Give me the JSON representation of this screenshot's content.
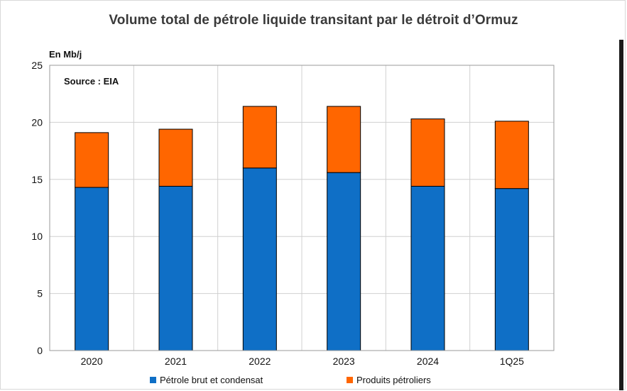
{
  "chart_data": {
    "type": "bar",
    "stacked": true,
    "title": "Volume total de pétrole liquide transitant par le détroit d’Ormuz",
    "ylabel": "En Mb/j",
    "annotation": "Source : EIA",
    "categories": [
      "2020",
      "2021",
      "2022",
      "2023",
      "2024",
      "1Q25"
    ],
    "series": [
      {
        "name": "Pétrole brut et condensat",
        "color": "#0f6fc6",
        "values": [
          14.3,
          14.4,
          16.0,
          15.6,
          14.4,
          14.2
        ]
      },
      {
        "name": "Produits pétroliers",
        "color": "#ff6600",
        "values": [
          4.8,
          5.0,
          5.4,
          5.8,
          5.9,
          5.9
        ]
      }
    ],
    "ylim": [
      0,
      25
    ],
    "yticks": [
      0,
      5,
      10,
      15,
      20,
      25
    ],
    "grid": true,
    "legend": "bottom"
  }
}
